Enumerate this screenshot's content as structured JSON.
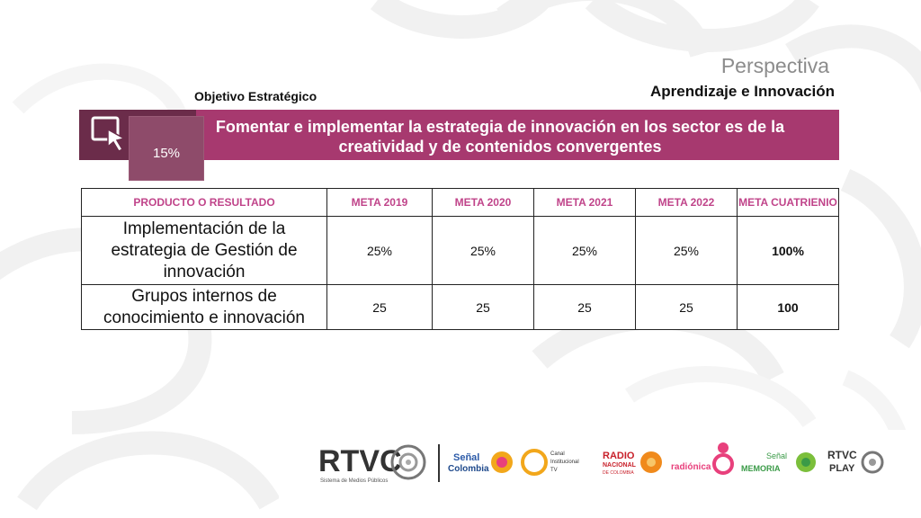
{
  "header": {
    "perspective_title": "Perspectiva",
    "perspective_subtitle": "Aprendizaje e Innovación",
    "objective_label": "Objetivo Estratégico"
  },
  "objective": {
    "weight": "15%",
    "text": "Fomentar  e implementar la estrategia de innovación en los sector es de la      creatividad y de contenidos convergentes"
  },
  "table": {
    "headers": [
      "PRODUCTO O RESULTADO",
      "META 2019",
      "META 2020",
      "META 2021",
      "META 2022",
      "META CUATRIENIO"
    ],
    "rows": [
      {
        "product": "Implementación de la estrategia de Gestión de innovación",
        "values": [
          "25%",
          "25%",
          "25%",
          "25%"
        ],
        "total": "100%"
      },
      {
        "product": "Grupos internos de conocimiento e innovación",
        "values": [
          "25",
          "25",
          "25",
          "25"
        ],
        "total": "100"
      }
    ]
  },
  "footer": {
    "brand": "RTVC",
    "brand_tagline": "Sistema de Medios Públicos",
    "senal_colombia": [
      "Señal",
      "Colombia"
    ],
    "canal_institucional": [
      "Canal",
      "Institucional",
      "TV"
    ],
    "radio_nacional": [
      "RADIO",
      "NACIONAL",
      "DE COLOMBIA"
    ],
    "radionica": "radiónica",
    "senal_memoria": [
      "Señal",
      "MEMORIA"
    ],
    "rtvc_play": [
      "RTVC",
      "PLAY"
    ]
  },
  "colors": {
    "band": "#a7396f",
    "band_dark": "#6b2c4a",
    "header_text": "#c0448a",
    "orange": "#f08a1c",
    "pink": "#e8407c"
  }
}
